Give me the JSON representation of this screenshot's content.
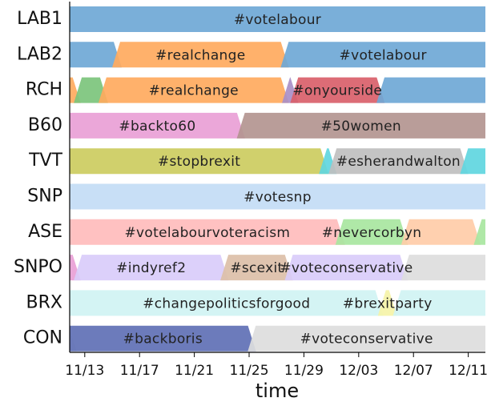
{
  "chart_data": {
    "type": "timeline",
    "xlabel": "time",
    "xlim": [
      11.9,
      42.25
    ],
    "xticks": [
      {
        "value": 13,
        "label": "11/13"
      },
      {
        "value": 17,
        "label": "11/17"
      },
      {
        "value": 21,
        "label": "11/21"
      },
      {
        "value": 25,
        "label": "11/25"
      },
      {
        "value": 29,
        "label": "11/29"
      },
      {
        "value": 33,
        "label": "12/03"
      },
      {
        "value": 37,
        "label": "12/07"
      },
      {
        "value": 41,
        "label": "12/11"
      }
    ],
    "rows": [
      {
        "name": "LAB1",
        "segments": [
          {
            "start": 11.9,
            "end": 42.25,
            "label": "#votelabour",
            "color": "#6fa8d6"
          }
        ]
      },
      {
        "name": "LAB2",
        "segments": [
          {
            "start": 11.9,
            "end": 15.7,
            "label": null,
            "color": "#6fa8d6"
          },
          {
            "start": 15.0,
            "end": 27.9,
            "label": "#realchange",
            "color": "#ffaa5e"
          },
          {
            "start": 27.3,
            "end": 42.25,
            "label": "#votelabour",
            "color": "#6fa8d6"
          }
        ]
      },
      {
        "name": "RCH",
        "segments": [
          {
            "start": 11.9,
            "end": 12.7,
            "label": null,
            "color": "#ffaa5e"
          },
          {
            "start": 12.2,
            "end": 14.7,
            "label": null,
            "color": "#7cc47c"
          },
          {
            "start": 14.0,
            "end": 27.9,
            "label": "#realchange",
            "color": "#ffaa5e"
          },
          {
            "start": 27.4,
            "end": 28.6,
            "label": null,
            "color": "#a98fc8"
          },
          {
            "start": 28.0,
            "end": 34.9,
            "label": "#onyourside",
            "color": "#d9606a"
          },
          {
            "start": 34.3,
            "end": 42.25,
            "label": null,
            "color": "#6fa8d6"
          }
        ]
      },
      {
        "name": "B60",
        "segments": [
          {
            "start": 11.9,
            "end": 24.7,
            "label": "#backto60",
            "color": "#e99fd6"
          },
          {
            "start": 24.1,
            "end": 42.25,
            "label": "#50women",
            "color": "#b39590"
          }
        ]
      },
      {
        "name": "TVT",
        "segments": [
          {
            "start": 11.9,
            "end": 30.8,
            "label": "#stopbrexit",
            "color": "#cccc60"
          },
          {
            "start": 30.1,
            "end": 31.4,
            "label": null,
            "color": "#5fd6e0"
          },
          {
            "start": 30.8,
            "end": 41.0,
            "label": "#esherandwalton",
            "color": "#bfbfbf"
          },
          {
            "start": 40.4,
            "end": 42.25,
            "label": null,
            "color": "#5fd6e0"
          }
        ]
      },
      {
        "name": "SNP",
        "segments": [
          {
            "start": 11.9,
            "end": 42.25,
            "label": "#votesnp",
            "color": "#c3dcf5"
          }
        ]
      },
      {
        "name": "ASE",
        "segments": [
          {
            "start": 11.9,
            "end": 32.0,
            "label": "#votelabourvoteracism",
            "color": "#ffbcbc"
          },
          {
            "start": 31.3,
            "end": 36.6,
            "label": "#nevercorbyn",
            "color": "#a8e6a0"
          },
          {
            "start": 36.1,
            "end": 41.9,
            "label": null,
            "color": "#ffcca8"
          },
          {
            "start": 41.4,
            "end": 42.25,
            "label": null,
            "color": "#a8e6a0"
          }
        ]
      },
      {
        "name": "SNPO",
        "segments": [
          {
            "start": 11.9,
            "end": 12.7,
            "label": null,
            "color": "#e99fd6"
          },
          {
            "start": 12.2,
            "end": 23.5,
            "label": "#indyref2",
            "color": "#d9ccfa"
          },
          {
            "start": 22.9,
            "end": 28.2,
            "label": "#scexit",
            "color": "#dcbfa8"
          },
          {
            "start": 27.6,
            "end": 36.6,
            "label": "#voteconservative",
            "color": "#d9ccfa"
          },
          {
            "start": 36.1,
            "end": 42.25,
            "label": null,
            "color": "#dddddd"
          }
        ]
      },
      {
        "name": "BRX",
        "segments": [
          {
            "start": 11.9,
            "end": 34.8,
            "label": "#changepoliticsforgood",
            "color": "#d0f3f3"
          },
          {
            "start": 34.4,
            "end": 35.8,
            "label": "#brexitparty",
            "color": "#f5f3a8"
          },
          {
            "start": 35.5,
            "end": 42.25,
            "label": null,
            "color": "#d0f3f3"
          }
        ]
      },
      {
        "name": "CON",
        "segments": [
          {
            "start": 11.9,
            "end": 12.4,
            "label": null,
            "color": "#dddddd"
          },
          {
            "start": 11.9,
            "end": 25.5,
            "label": "#backboris",
            "color": "#6070b5"
          },
          {
            "start": 24.9,
            "end": 42.25,
            "label": "#voteconservative",
            "color": "#dddddd"
          }
        ]
      }
    ]
  }
}
